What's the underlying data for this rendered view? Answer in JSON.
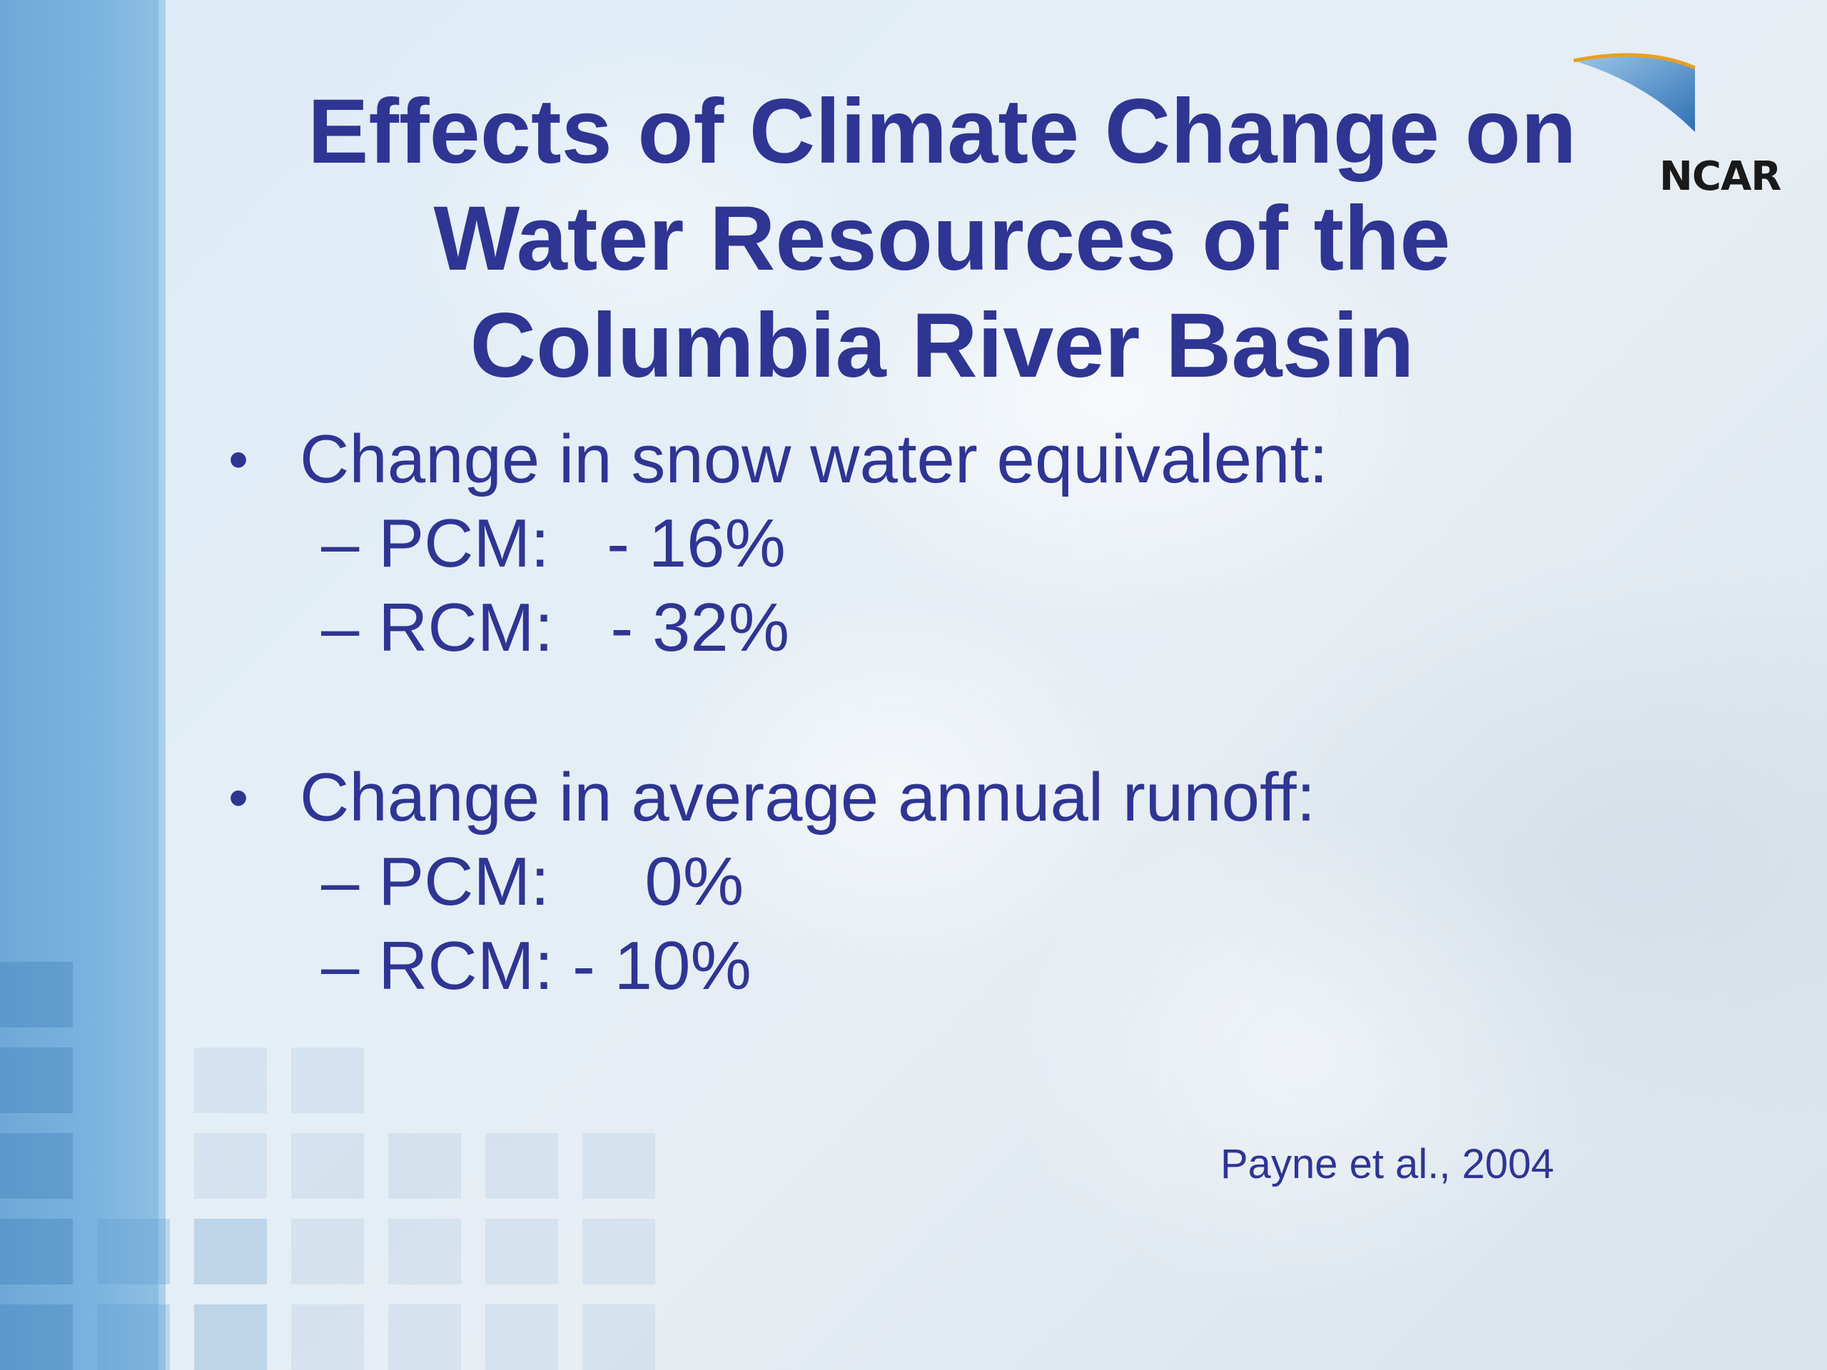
{
  "slide": {
    "title_lines": [
      "Effects of Climate Change on",
      "Water Resources of the",
      "Columbia River Basin"
    ],
    "logo_text": "NCAR",
    "bullets": [
      {
        "marker": "•",
        "text": "Change in snow water equivalent:",
        "subitems": [
          "– PCM:   - 16%",
          "– RCM:   - 32%"
        ]
      },
      {
        "marker": "•",
        "text": "Change in average annual runoff:",
        "subitems": [
          "– PCM:     0%",
          "– RCM: - 10%"
        ]
      }
    ],
    "citation": "Payne et al., 2004"
  },
  "colors": {
    "text": "#2f3592",
    "left_bar": "#7ab3df",
    "logo_arc": "#3a7fc0"
  },
  "icons": {
    "logo": "ncar-logo-icon"
  }
}
